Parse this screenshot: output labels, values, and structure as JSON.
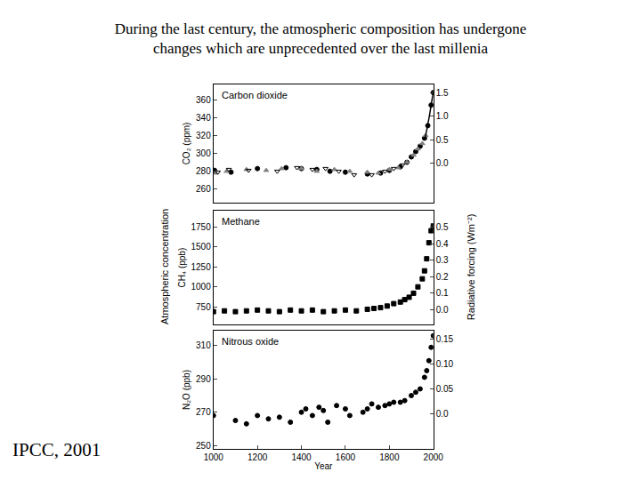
{
  "heading": [
    "During the last century, the atmospheric composition has undergone",
    "changes which are unprecedented over the last millenia"
  ],
  "source": "IPCC, 2001",
  "ylabel": "Atmospheric concentration",
  "y2label": "Radiative forcing (Wm⁻²)",
  "chart_data": [
    {
      "type": "scatter",
      "title": "Carbon dioxide",
      "ylabel": "CO₂ (ppm)",
      "xlim": [
        1000,
        2000
      ],
      "ylim": [
        245,
        377
      ],
      "yticks": [
        260,
        280,
        300,
        320,
        340,
        360
      ],
      "y2lim": [
        -0.83,
        1.67
      ],
      "y2ticks": [
        {
          "value": 0,
          "label": "0.0"
        },
        0.5,
        {
          "value": 1,
          "label": "1.0"
        },
        1.5
      ],
      "grid": false,
      "series": [
        {
          "color": "#000000",
          "marker": "circle",
          "x": [
            1005,
            1080,
            1200,
            1330,
            1400,
            1470,
            1530,
            1600,
            1700,
            1760,
            1800,
            1850,
            1880,
            1900,
            1920,
            1940,
            1960,
            1975,
            1990,
            2000
          ],
          "values": [
            281,
            279,
            283,
            284,
            283,
            282,
            280,
            279,
            277,
            278,
            281,
            285,
            290,
            296,
            302,
            308,
            317,
            331,
            354,
            368
          ]
        },
        {
          "color": "#808080",
          "marker": "triangle-up",
          "x": [
            1010,
            1060,
            1150,
            1240,
            1310,
            1400,
            1470,
            1550,
            1620,
            1700,
            1750,
            1800,
            1840,
            1880,
            1910,
            1930,
            1950,
            1965
          ],
          "values": [
            278,
            280,
            282,
            281,
            283,
            283,
            280,
            282,
            280,
            279,
            278,
            282,
            284,
            290,
            298,
            305,
            311,
            320
          ]
        },
        {
          "color": "#000000",
          "marker": "triangle-down-open",
          "x": [
            1020,
            1070,
            1160,
            1290,
            1380,
            1450,
            1510,
            1570,
            1640,
            1720,
            1780,
            1820,
            1860
          ],
          "values": [
            279,
            282,
            281,
            280,
            284,
            282,
            283,
            280,
            276,
            276,
            280,
            283,
            287
          ]
        },
        {
          "color": "#000000",
          "marker": "none",
          "line_style": "solid",
          "x": [
            1958,
            1965,
            1970,
            1975,
            1980,
            1985,
            1990,
            1995,
            2000
          ],
          "values": [
            315,
            320,
            326,
            331,
            339,
            346,
            354,
            361,
            369
          ]
        }
      ]
    },
    {
      "type": "scatter",
      "title": "Methane",
      "ylabel": "CH₄ (ppb)",
      "xlim": [
        1000,
        2000
      ],
      "ylim": [
        530,
        1950
      ],
      "yticks": [
        750,
        1000,
        1250,
        1500,
        1750
      ],
      "y2lim": [
        -0.09,
        0.6
      ],
      "y2ticks": [
        {
          "value": 0,
          "label": "0.0"
        },
        0.1,
        0.2,
        0.3,
        0.4,
        0.5
      ],
      "grid": false,
      "series": [
        {
          "color": "#000000",
          "marker": "square",
          "x": [
            1000,
            1050,
            1100,
            1150,
            1200,
            1250,
            1300,
            1350,
            1400,
            1450,
            1500,
            1550,
            1600,
            1650,
            1700,
            1730,
            1760,
            1790,
            1820,
            1850,
            1870,
            1890,
            1910,
            1930,
            1950,
            1960,
            1970,
            1980,
            1990,
            2000
          ],
          "values": [
            690,
            700,
            690,
            700,
            710,
            700,
            690,
            710,
            700,
            710,
            690,
            700,
            710,
            700,
            720,
            730,
            740,
            760,
            790,
            810,
            840,
            870,
            920,
            1000,
            1100,
            1200,
            1350,
            1550,
            1700,
            1760
          ]
        }
      ]
    },
    {
      "type": "scatter",
      "title": "Nitrous oxide",
      "ylabel": "N₂O (ppb)",
      "xlabel": "Year",
      "xlim": [
        1000,
        2000
      ],
      "xticks": [
        1000,
        1200,
        1400,
        1600,
        1800,
        2000
      ],
      "ylim": [
        248,
        319
      ],
      "yticks": [
        250,
        270,
        290,
        310
      ],
      "y2lim": [
        -0.07,
        0.166
      ],
      "y2ticks": [
        {
          "value": 0,
          "label": "0.0"
        },
        0.05,
        {
          "value": 0.1,
          "label": "0.10"
        },
        0.15
      ],
      "grid": false,
      "series": [
        {
          "color": "#000000",
          "marker": "circle",
          "x": [
            1000,
            1100,
            1150,
            1200,
            1250,
            1300,
            1350,
            1400,
            1420,
            1450,
            1480,
            1500,
            1520,
            1560,
            1600,
            1620,
            1680,
            1700,
            1720,
            1750,
            1780,
            1800,
            1820,
            1850,
            1870,
            1900,
            1920,
            1940,
            1960,
            1970,
            1980,
            1990,
            2000
          ],
          "values": [
            268,
            265,
            263,
            268,
            266,
            267,
            264,
            270,
            272,
            268,
            273,
            271,
            264,
            274,
            272,
            268,
            270,
            272,
            275,
            273,
            274,
            275,
            276,
            276,
            277,
            280,
            282,
            284,
            291,
            295,
            301,
            309,
            316
          ]
        }
      ]
    }
  ]
}
